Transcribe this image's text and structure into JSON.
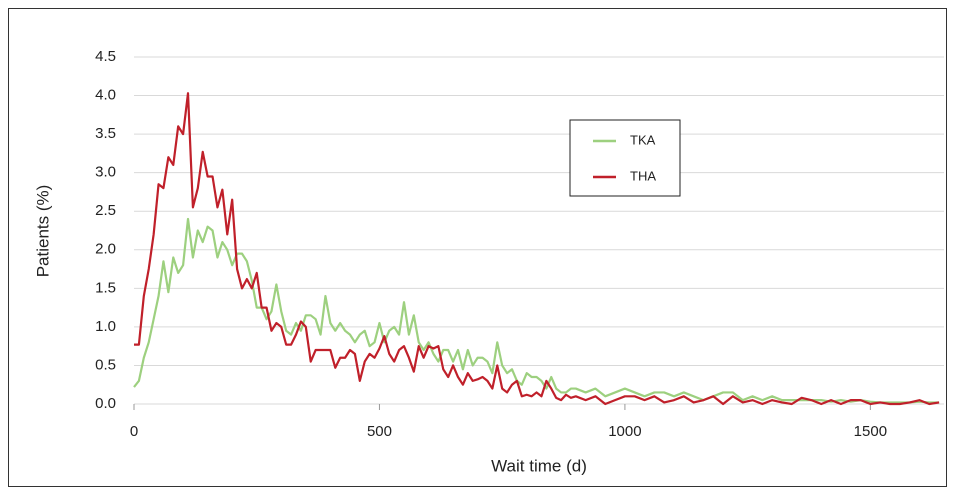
{
  "chart_data": {
    "type": "line",
    "x_label": "Wait time (d)",
    "y_label": "Patients (%)",
    "x": [
      0,
      10,
      20,
      30,
      40,
      50,
      60,
      70,
      80,
      90,
      100,
      110,
      120,
      130,
      140,
      150,
      160,
      170,
      180,
      190,
      200,
      210,
      220,
      230,
      240,
      250,
      260,
      270,
      280,
      290,
      300,
      310,
      320,
      330,
      340,
      350,
      360,
      370,
      380,
      390,
      400,
      410,
      420,
      430,
      440,
      450,
      460,
      470,
      480,
      490,
      500,
      510,
      520,
      530,
      540,
      550,
      560,
      570,
      580,
      590,
      600,
      610,
      620,
      630,
      640,
      650,
      660,
      670,
      680,
      690,
      700,
      710,
      720,
      730,
      740,
      750,
      760,
      770,
      780,
      790,
      800,
      810,
      820,
      830,
      840,
      850,
      860,
      870,
      880,
      890,
      900,
      920,
      940,
      960,
      980,
      1000,
      1020,
      1040,
      1060,
      1080,
      1100,
      1120,
      1140,
      1160,
      1180,
      1200,
      1220,
      1240,
      1260,
      1280,
      1300,
      1320,
      1340,
      1360,
      1380,
      1400,
      1420,
      1440,
      1460,
      1480,
      1500,
      1520,
      1540,
      1560,
      1580,
      1600,
      1620,
      1640
    ],
    "series": [
      {
        "name": "TKA",
        "color": "#9dd07f",
        "values": [
          0.22,
          0.3,
          0.6,
          0.8,
          1.1,
          1.4,
          1.85,
          1.45,
          1.9,
          1.7,
          1.8,
          2.4,
          1.9,
          2.25,
          2.1,
          2.3,
          2.25,
          1.9,
          2.1,
          2.0,
          1.8,
          1.95,
          1.95,
          1.85,
          1.6,
          1.25,
          1.25,
          1.1,
          1.2,
          1.55,
          1.2,
          0.95,
          0.9,
          1.05,
          0.95,
          1.15,
          1.15,
          1.1,
          0.9,
          1.4,
          1.05,
          0.95,
          1.05,
          0.95,
          0.9,
          0.8,
          0.9,
          0.95,
          0.75,
          0.8,
          1.05,
          0.8,
          0.95,
          1.0,
          0.9,
          1.32,
          0.9,
          1.15,
          0.8,
          0.7,
          0.8,
          0.65,
          0.55,
          0.7,
          0.7,
          0.55,
          0.7,
          0.45,
          0.7,
          0.5,
          0.6,
          0.6,
          0.55,
          0.4,
          0.8,
          0.5,
          0.4,
          0.45,
          0.3,
          0.25,
          0.4,
          0.35,
          0.35,
          0.3,
          0.2,
          0.35,
          0.2,
          0.15,
          0.15,
          0.2,
          0.2,
          0.15,
          0.2,
          0.1,
          0.15,
          0.2,
          0.15,
          0.1,
          0.15,
          0.15,
          0.1,
          0.15,
          0.1,
          0.05,
          0.1,
          0.15,
          0.15,
          0.05,
          0.1,
          0.05,
          0.1,
          0.05,
          0.05,
          0.05,
          0.05,
          0.05,
          0.03,
          0.05,
          0.03,
          0.05,
          0.03,
          0.02,
          0.02,
          0.02,
          0.02,
          0.03,
          0.02,
          0.02
        ]
      },
      {
        "name": "THA",
        "color": "#c0202a",
        "values": [
          0.77,
          0.77,
          1.4,
          1.75,
          2.2,
          2.85,
          2.8,
          3.2,
          3.1,
          3.6,
          3.5,
          4.03,
          2.55,
          2.8,
          3.27,
          2.95,
          2.95,
          2.55,
          2.78,
          2.2,
          2.65,
          1.75,
          1.5,
          1.62,
          1.5,
          1.7,
          1.25,
          1.25,
          0.95,
          1.05,
          1.0,
          0.77,
          0.77,
          0.9,
          1.07,
          1.0,
          0.55,
          0.7,
          0.7,
          0.7,
          0.7,
          0.47,
          0.6,
          0.6,
          0.7,
          0.65,
          0.3,
          0.55,
          0.65,
          0.6,
          0.72,
          0.88,
          0.65,
          0.55,
          0.7,
          0.75,
          0.6,
          0.42,
          0.75,
          0.6,
          0.75,
          0.72,
          0.75,
          0.45,
          0.35,
          0.5,
          0.35,
          0.25,
          0.4,
          0.3,
          0.32,
          0.35,
          0.3,
          0.2,
          0.5,
          0.2,
          0.15,
          0.25,
          0.3,
          0.1,
          0.12,
          0.1,
          0.15,
          0.1,
          0.3,
          0.2,
          0.08,
          0.05,
          0.12,
          0.08,
          0.1,
          0.05,
          0.1,
          0.0,
          0.05,
          0.1,
          0.1,
          0.05,
          0.1,
          0.02,
          0.05,
          0.1,
          0.02,
          0.05,
          0.1,
          0.0,
          0.1,
          0.02,
          0.05,
          0.0,
          0.05,
          0.02,
          0.0,
          0.08,
          0.05,
          0.0,
          0.05,
          0.0,
          0.05,
          0.05,
          0.0,
          0.02,
          0.0,
          0.0,
          0.02,
          0.05,
          0.0,
          0.02
        ]
      }
    ],
    "xlim": [
      0,
      1650
    ],
    "xticks": [
      0,
      500,
      1000,
      1500
    ],
    "ylim": [
      0,
      4.5
    ],
    "yticks": [
      {
        "value": 0,
        "label": "0.0"
      },
      0.5,
      {
        "value": 1,
        "label": "1.0"
      },
      1.5,
      {
        "value": 2,
        "label": "2.0"
      },
      2.5,
      {
        "value": 3,
        "label": "3.0"
      },
      3.5,
      {
        "value": 4,
        "label": "4.0"
      },
      4.5
    ],
    "grid": true,
    "legend": "upper-right"
  }
}
